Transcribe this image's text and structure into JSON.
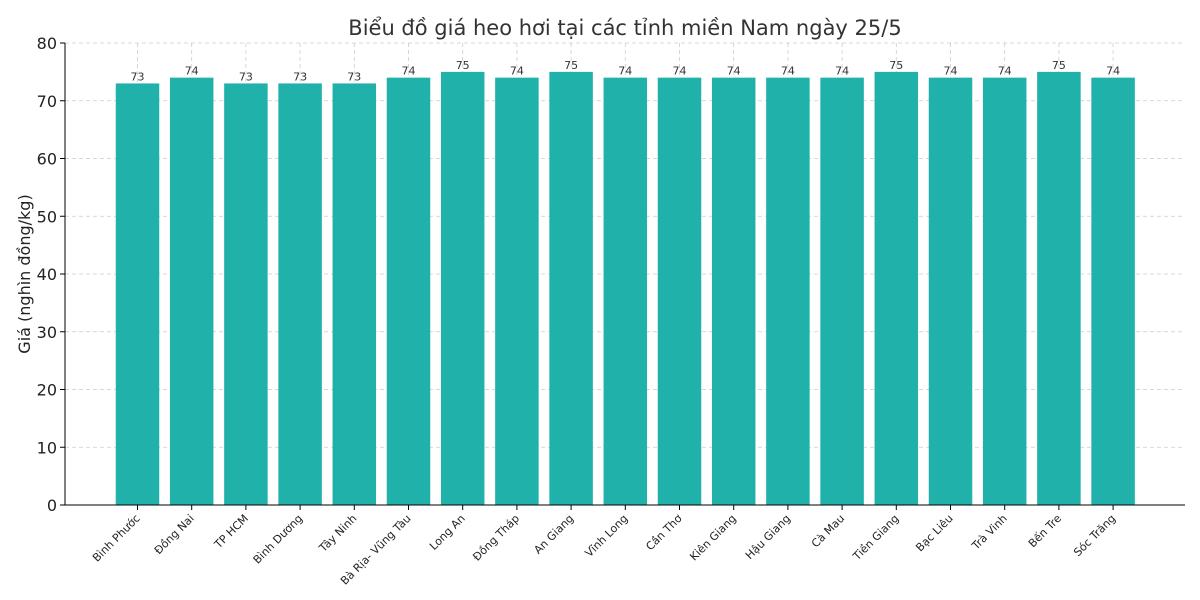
{
  "chart_data": {
    "type": "bar",
    "title": "Biểu đồ giá heo hơi tại các tỉnh miền Nam ngày 25/5",
    "xlabel": "",
    "ylabel": "Giá (nghìn đồng/kg)",
    "ylim": [
      0,
      80
    ],
    "yticks": [
      "0",
      "10",
      "20",
      "30",
      "40",
      "50",
      "60",
      "70",
      "80"
    ],
    "grid": true,
    "bar_color": "#20b2aa",
    "categories": [
      "Bình Phước",
      "Đồng Nai",
      "TP HCM",
      "Bình Dương",
      "Tây Ninh",
      "Bà Rịa- Vũng Tàu",
      "Long An",
      "Đồng Tháp",
      "An Giang",
      "Vĩnh Long",
      "Cần Thơ",
      "Kiên Giang",
      "Hậu Giang",
      "Cà Mau",
      "Tiền Giang",
      "Bạc Liêu",
      "Trà Vinh",
      "Bến Tre",
      "Sóc Trăng"
    ],
    "values": [
      73,
      74,
      73,
      73,
      73,
      74,
      75,
      74,
      75,
      74,
      74,
      74,
      74,
      74,
      75,
      74,
      74,
      75,
      74
    ]
  }
}
